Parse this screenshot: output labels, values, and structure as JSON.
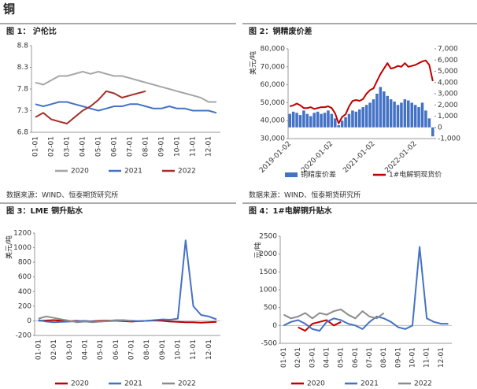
{
  "heading": "铜",
  "sources": [
    "数据来源：WIND、恒泰期货研究所",
    "数据来源：WIND、恒泰期货研究所"
  ],
  "chart_data": [
    {
      "type": "line",
      "title": "图 1： 沪伦比",
      "categories": [
        "01-01",
        null,
        "02-01",
        null,
        "03-01",
        null,
        "04-01",
        null,
        "05-01",
        null,
        "06-01",
        null,
        "07-01",
        null,
        "08-01",
        null,
        "09-01",
        null,
        "10-01",
        null,
        "11-01",
        null,
        "12-01",
        null
      ],
      "ylim": [
        6.8,
        8.8
      ],
      "yticks": [
        6.8,
        7.3,
        7.8,
        8.3,
        8.8
      ],
      "series": [
        {
          "name": "2020",
          "color": "#a6a6a6",
          "values": [
            7.95,
            7.9,
            8.0,
            8.1,
            8.1,
            8.15,
            8.2,
            8.15,
            8.2,
            8.15,
            8.1,
            8.1,
            8.05,
            8.0,
            7.95,
            7.9,
            7.85,
            7.8,
            7.75,
            7.7,
            7.65,
            7.6,
            7.5,
            7.5
          ]
        },
        {
          "name": "2021",
          "color": "#4472c4",
          "values": [
            7.45,
            7.4,
            7.45,
            7.5,
            7.5,
            7.45,
            7.4,
            7.35,
            7.3,
            7.35,
            7.4,
            7.4,
            7.45,
            7.45,
            7.4,
            7.35,
            7.35,
            7.4,
            7.35,
            7.35,
            7.3,
            7.3,
            7.3,
            7.25
          ]
        },
        {
          "name": "2022",
          "color": "#a5302a",
          "values": [
            7.15,
            7.25,
            7.1,
            7.05,
            7.0,
            7.15,
            7.3,
            7.4,
            7.55,
            7.75,
            7.7,
            7.6,
            7.65,
            7.7,
            7.75,
            null,
            null,
            null,
            null,
            null,
            null,
            null,
            null,
            null
          ]
        }
      ]
    },
    {
      "type": "combo",
      "title": "图 2：铜精废价差",
      "ylabel": "美元/吨",
      "categories": [
        "2019-01-02",
        null,
        null,
        null,
        null,
        null,
        null,
        null,
        null,
        null,
        null,
        null,
        "2020-01-02",
        null,
        null,
        null,
        null,
        null,
        null,
        null,
        null,
        null,
        null,
        null,
        "2021-01-02",
        null,
        null,
        null,
        null,
        null,
        null,
        null,
        null,
        null,
        null,
        null,
        "2022-01-02",
        null,
        null,
        null,
        null,
        null
      ],
      "ylim": [
        30000,
        80000
      ],
      "yticks": [
        {
          "value": 30000,
          "label": "30,000"
        },
        {
          "value": 40000,
          "label": "40,000"
        },
        {
          "value": 50000,
          "label": "50,000"
        },
        {
          "value": 60000,
          "label": "60,000"
        },
        {
          "value": 70000,
          "label": "70,000"
        },
        {
          "value": 80000,
          "label": "80,000"
        }
      ],
      "y2lim": [
        -1000,
        7000
      ],
      "y2ticks": [
        {
          "value": -1000,
          "label": "-1,000"
        },
        0,
        {
          "value": 1000,
          "label": "1,000"
        },
        {
          "value": 2000,
          "label": "2,000"
        },
        {
          "value": 3000,
          "label": "3,000"
        },
        {
          "value": 4000,
          "label": "4,000"
        },
        {
          "value": 5000,
          "label": "5,000"
        },
        {
          "value": 6000,
          "label": "6,000"
        },
        {
          "value": 7000,
          "label": "7,000"
        }
      ],
      "series": [
        {
          "name": "铜精废价差",
          "type": "bar",
          "axis": "y2",
          "color": "#4472c4",
          "values": [
            1200,
            1400,
            1300,
            1100,
            1500,
            1200,
            1000,
            1300,
            1400,
            1200,
            1300,
            1500,
            1200,
            800,
            200,
            600,
            900,
            1200,
            1500,
            1400,
            1600,
            1800,
            2000,
            2200,
            2500,
            3000,
            3600,
            3200,
            2800,
            2500,
            2300,
            2000,
            2200,
            2500,
            2400,
            2200,
            2000,
            1800,
            2200,
            1500,
            800,
            -800
          ]
        },
        {
          "name": "1#电解铜现货价",
          "type": "line",
          "color": "#c00000",
          "values": [
            48000,
            48500,
            49500,
            48500,
            47000,
            47000,
            47500,
            46500,
            47000,
            47500,
            47500,
            48000,
            47000,
            44000,
            38500,
            42000,
            43500,
            48000,
            51000,
            51500,
            51000,
            52000,
            55000,
            57000,
            58000,
            62000,
            66000,
            69000,
            72000,
            69000,
            69500,
            70500,
            70000,
            72000,
            70000,
            70500,
            71000,
            72000,
            73000,
            73500,
            71000,
            62000
          ]
        }
      ]
    },
    {
      "type": "line",
      "title": "图 3：LME 铜升贴水",
      "ylabel": "美元/吨",
      "categories": [
        "01-01",
        null,
        "02-01",
        null,
        "03-01",
        null,
        "04-01",
        null,
        "05-01",
        null,
        "06-01",
        null,
        "07-01",
        null,
        "08-01",
        null,
        "09-01",
        null,
        "10-01",
        null,
        "11-01",
        null,
        "12-01",
        null
      ],
      "ylim": [
        -200,
        1200
      ],
      "yticks": [
        -200,
        0,
        200,
        400,
        600,
        800,
        1000,
        1200
      ],
      "series": [
        {
          "name": "2020",
          "color": "#c00000",
          "values": [
            0,
            5,
            10,
            0,
            -5,
            0,
            -10,
            -5,
            0,
            5,
            0,
            -5,
            -10,
            -5,
            0,
            5,
            0,
            -10,
            -15,
            -20,
            -20,
            -25,
            -20,
            -15
          ]
        },
        {
          "name": "2021",
          "color": "#4472c4",
          "values": [
            10,
            -10,
            -20,
            -15,
            -10,
            -5,
            0,
            -10,
            -10,
            -5,
            0,
            5,
            0,
            -5,
            0,
            10,
            20,
            15,
            30,
            1100,
            200,
            80,
            60,
            20
          ]
        },
        {
          "name": "2022",
          "color": "#8c8c8c",
          "values": [
            30,
            60,
            40,
            20,
            0,
            -20,
            -10,
            -20,
            -10,
            0,
            10,
            10,
            0,
            null,
            null,
            null,
            null,
            null,
            null,
            null,
            null,
            null,
            null,
            null
          ]
        }
      ]
    },
    {
      "type": "line",
      "title": "图 4：1#电解铜升贴水",
      "ylabel": "元/吨",
      "categories": [
        "01-01",
        null,
        "02-01",
        null,
        "03-01",
        null,
        "04-01",
        null,
        "05-01",
        null,
        "06-01",
        null,
        "07-01",
        null,
        "08-01",
        null,
        "09-01",
        null,
        "10-01",
        null,
        "11-01",
        null,
        "12-01",
        null
      ],
      "ylim": [
        -500,
        2500
      ],
      "yticks": [
        -500,
        0,
        500,
        1000,
        1500,
        2000,
        2500
      ],
      "series": [
        {
          "name": "2020",
          "color": "#c00000",
          "values": [
            null,
            null,
            -50,
            -150,
            50,
            100,
            150,
            0,
            100,
            null,
            null,
            null,
            null,
            null,
            null,
            null,
            null,
            null,
            null,
            null,
            null,
            null,
            null,
            null
          ]
        },
        {
          "name": "2021",
          "color": "#4472c4",
          "values": [
            0,
            100,
            150,
            50,
            -100,
            -150,
            100,
            200,
            150,
            50,
            0,
            -100,
            100,
            250,
            200,
            100,
            -50,
            -100,
            0,
            2200,
            200,
            100,
            50,
            50
          ]
        },
        {
          "name": "2022",
          "color": "#8c8c8c",
          "values": [
            300,
            200,
            250,
            350,
            200,
            350,
            300,
            400,
            450,
            300,
            200,
            400,
            250,
            200,
            350,
            null,
            null,
            null,
            null,
            null,
            null,
            null,
            null,
            null
          ]
        }
      ]
    }
  ]
}
